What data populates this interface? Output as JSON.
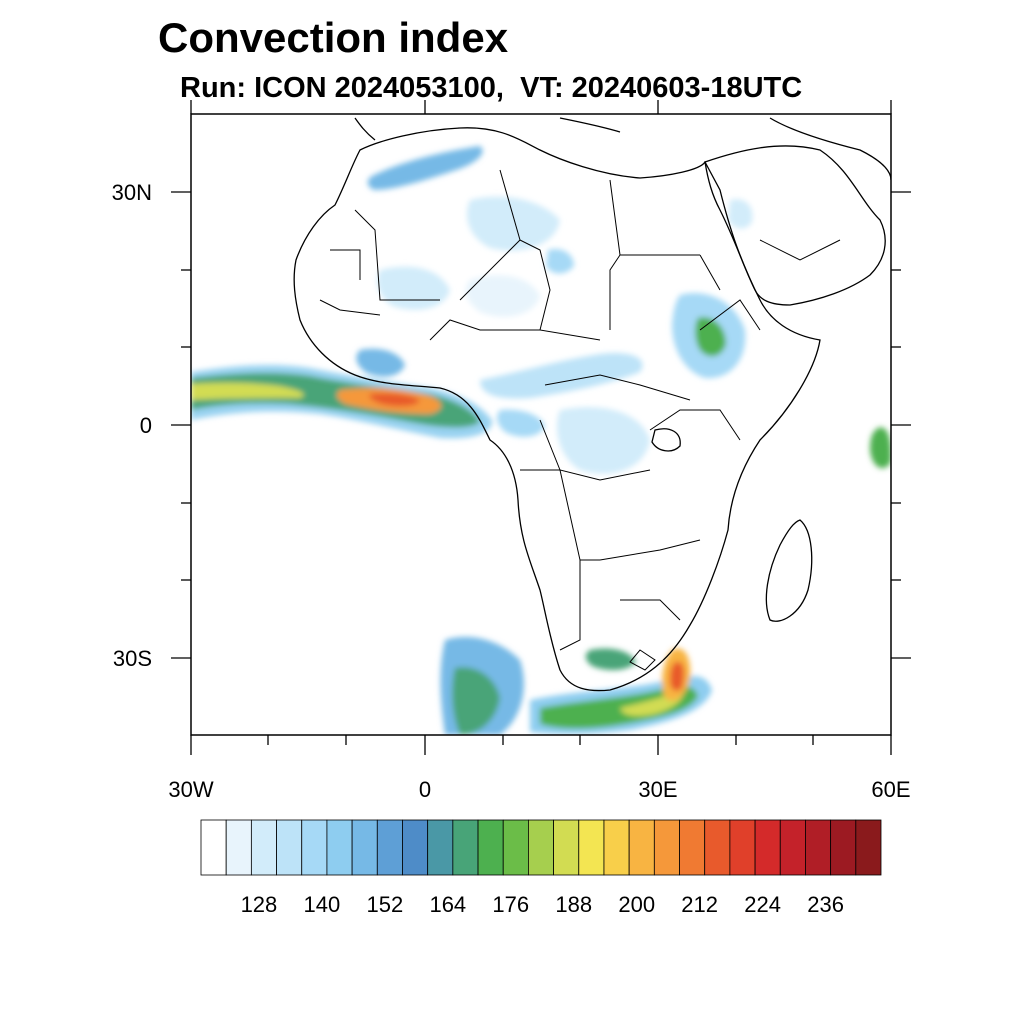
{
  "title": "Convection index",
  "subtitle": "Run: ICON 2024053100,  VT: 20240603-18UTC",
  "map": {
    "lon_range": [
      -30,
      60
    ],
    "lat_range": [
      -40,
      40
    ],
    "lon_labels": [
      "30W",
      "0",
      "30E",
      "60E"
    ],
    "lat_labels": [
      "30N",
      "0",
      "30S"
    ],
    "land_fill": "#ffffff",
    "coast_color": "#000000"
  },
  "colorbar": {
    "tick_labels": [
      "128",
      "140",
      "152",
      "164",
      "176",
      "188",
      "200",
      "212",
      "224",
      "236"
    ],
    "colors": [
      "#ffffff",
      "#e8f4fc",
      "#d2ecfa",
      "#bde3f8",
      "#a6d9f6",
      "#8ecdf0",
      "#76b9e6",
      "#5e9fd6",
      "#4e8cc8",
      "#4a98a6",
      "#48a478",
      "#4db04f",
      "#6bbd48",
      "#a6cf4e",
      "#d2dc52",
      "#f3e552",
      "#f8cf4a",
      "#f8b442",
      "#f5983a",
      "#f07a32",
      "#e85a2c",
      "#e0402a",
      "#d42a2a",
      "#c4222a",
      "#b01e26",
      "#9c1a22",
      "#8a1a1c"
    ]
  }
}
